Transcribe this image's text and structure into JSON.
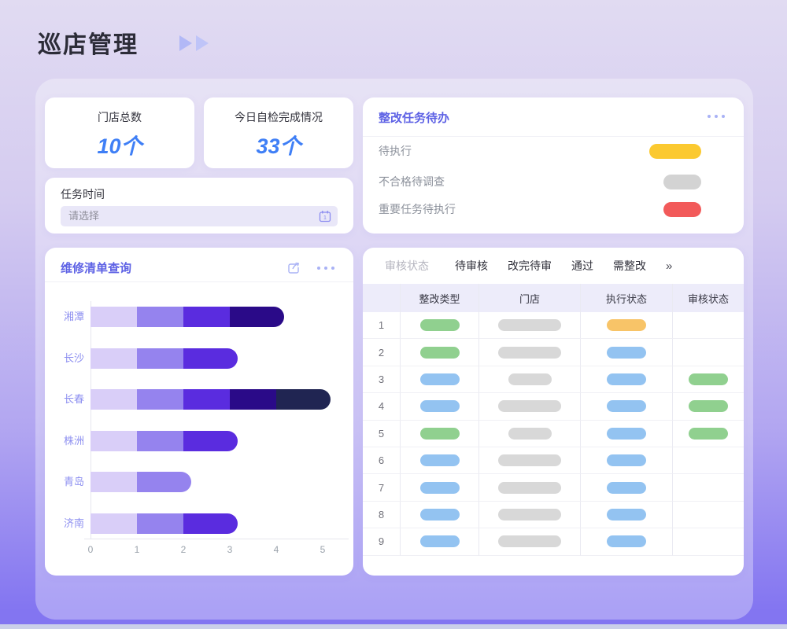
{
  "header": {
    "title": "巡店管理"
  },
  "stats": {
    "cards": [
      {
        "label": "门店总数",
        "value": "10个"
      },
      {
        "label": "今日自检完成情况",
        "value": "33个"
      }
    ]
  },
  "task_time": {
    "label": "任务时间",
    "placeholder": "请选择"
  },
  "todo": {
    "title": "整改任务待办",
    "items": [
      {
        "label": "待执行",
        "pill_color": "#fbc930",
        "pill_width": 66
      },
      {
        "label": "不合格待调查",
        "pill_color": "#d3d3d3",
        "pill_width": 48
      },
      {
        "label": "重要任务待执行",
        "pill_color": "#f25a5a",
        "pill_width": 48
      }
    ]
  },
  "repair": {
    "title": "维修清单查询"
  },
  "chart_data": {
    "type": "bar",
    "orientation": "horizontal",
    "stacked": true,
    "title": "维修清单查询",
    "categories": [
      "湘潭",
      "长沙",
      "长春",
      "株洲",
      "青岛",
      "济南"
    ],
    "segments": [
      [
        1,
        1,
        1,
        1
      ],
      [
        1,
        1,
        1
      ],
      [
        1,
        1,
        1,
        1,
        1
      ],
      [
        1,
        1,
        1
      ],
      [
        1,
        1
      ],
      [
        1,
        1,
        1
      ]
    ],
    "totals": [
      4,
      3,
      5,
      3,
      2,
      3
    ],
    "segment_colors": [
      "#d9cef8",
      "#9583ee",
      "#5a2cdf",
      "#2a0a88",
      "#202552"
    ],
    "xlim": [
      0,
      5
    ],
    "xticks": [
      "0",
      "1",
      "2",
      "3",
      "4",
      "5"
    ],
    "grid": false,
    "category_label_color": "#8d8ff0"
  },
  "review": {
    "filter_label": "审核状态",
    "tabs": [
      "待审核",
      "改完待审",
      "通过",
      "需整改"
    ],
    "more": "»",
    "columns": [
      "整改类型",
      "门店",
      "执行状态",
      "审核状态"
    ],
    "pill_colors": {
      "green": "#90d08f",
      "blue": "#93c3f1",
      "orange": "#f8c468",
      "gray": "#d8d8d8"
    },
    "store_pill_widths": {
      "wide": 80,
      "short": 55
    },
    "status_pill_width": 50,
    "rows": [
      {
        "num": "1",
        "type": "green",
        "store": "wide",
        "exec": "orange",
        "review": ""
      },
      {
        "num": "2",
        "type": "green",
        "store": "wide",
        "exec": "blue",
        "review": ""
      },
      {
        "num": "3",
        "type": "blue",
        "store": "short",
        "exec": "blue",
        "review": "green"
      },
      {
        "num": "4",
        "type": "blue",
        "store": "wide",
        "exec": "blue",
        "review": "green"
      },
      {
        "num": "5",
        "type": "green",
        "store": "short",
        "exec": "blue",
        "review": "green"
      },
      {
        "num": "6",
        "type": "blue",
        "store": "wide",
        "exec": "blue",
        "review": ""
      },
      {
        "num": "7",
        "type": "blue",
        "store": "wide",
        "exec": "blue",
        "review": ""
      },
      {
        "num": "8",
        "type": "blue",
        "store": "wide",
        "exec": "blue",
        "review": ""
      },
      {
        "num": "9",
        "type": "blue",
        "store": "wide",
        "exec": "blue",
        "review": ""
      }
    ]
  },
  "colors": {
    "card_title_purple": "#5e62e5",
    "stat_value_blue": "#3f7ff6",
    "icon_periwinkle": "#a9b2f5"
  }
}
